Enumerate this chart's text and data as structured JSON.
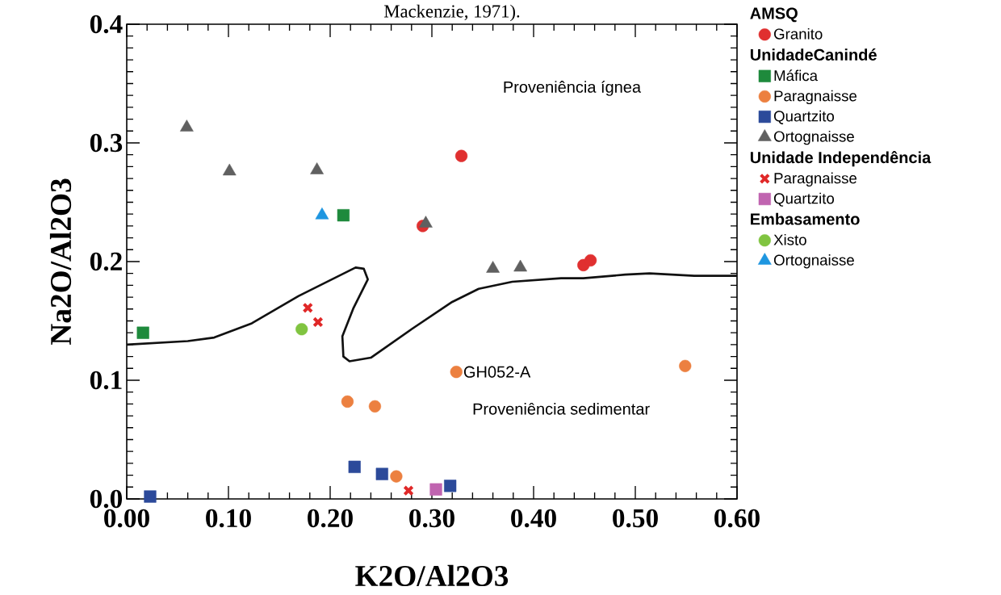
{
  "chart_data": {
    "type": "scatter",
    "title": "Mackenzie, 1971).",
    "xlabel": "K2O/Al2O3",
    "ylabel": "Na2O/Al2O3",
    "xlim": [
      0,
      0.6
    ],
    "ylim": [
      0,
      0.4
    ],
    "xticks": [
      {
        "value": 0,
        "label": "0.00"
      },
      {
        "value": 0.1,
        "label": "0.10"
      },
      {
        "value": 0.2,
        "label": "0.20"
      },
      {
        "value": 0.3,
        "label": "0.30"
      },
      {
        "value": 0.4,
        "label": "0.40"
      },
      {
        "value": 0.5,
        "label": "0.50"
      },
      {
        "value": 0.6,
        "label": "0.60"
      }
    ],
    "yticks": [
      {
        "value": 0,
        "label": "0.0"
      },
      {
        "value": 0.1,
        "label": "0.1"
      },
      {
        "value": 0.2,
        "label": "0.2"
      },
      {
        "value": 0.3,
        "label": "0.3"
      },
      {
        "value": 0.4,
        "label": "0.4"
      }
    ],
    "grid": false,
    "legend": "right",
    "annotations": [
      "AMSQ",
      "UnidadeCanindé",
      "Unidade Independência",
      "Embasamento",
      "Proveniência ígnea",
      "Proveniência sedimentar",
      {
        "text": "GH052-A",
        "x": 0.324,
        "y": 0.107
      }
    ],
    "series": [
      {
        "type": "line",
        "color": "#111111",
        "x": [
          0.0,
          0.06,
          0.086,
          0.123,
          0.169,
          0.225,
          0.233,
          0.237,
          0.223,
          0.212,
          0.213,
          0.219,
          0.24,
          0.28,
          0.32,
          0.346,
          0.379,
          0.427,
          0.449,
          0.49,
          0.514,
          0.558,
          0.6
        ],
        "values": [
          0.13,
          0.133,
          0.136,
          0.148,
          0.171,
          0.195,
          0.194,
          0.185,
          0.161,
          0.137,
          0.12,
          0.116,
          0.119,
          0.143,
          0.166,
          0.177,
          0.183,
          0.186,
          0.186,
          0.189,
          0.19,
          0.188,
          0.188
        ]
      },
      {
        "name": "Granito",
        "color": "#e03030",
        "marker": "circle",
        "x": [
          0.329,
          0.291,
          0.449,
          0.456
        ],
        "values": [
          0.289,
          0.23,
          0.197,
          0.201
        ]
      },
      {
        "name": "Máfica",
        "color": "#1e8a3c",
        "marker": "square",
        "x": [
          0.213,
          0.016
        ],
        "values": [
          0.239,
          0.14
        ]
      },
      {
        "name": "Paragnaisse",
        "color": "#ec8040",
        "marker": "circle",
        "x": [
          0.324,
          0.549,
          0.217,
          0.244,
          0.265
        ],
        "values": [
          0.107,
          0.112,
          0.082,
          0.078,
          0.019
        ]
      },
      {
        "name": "Quartzito",
        "color": "#2c4a9a",
        "marker": "square",
        "x": [
          0.224,
          0.251,
          0.318,
          0.023
        ],
        "values": [
          0.027,
          0.021,
          0.011,
          0.002
        ]
      },
      {
        "name": "Ortognaisse",
        "color": "#606060",
        "marker": "triangle",
        "x": [
          0.059,
          0.101,
          0.187,
          0.294,
          0.36,
          0.387
        ],
        "values": [
          0.313,
          0.276,
          0.277,
          0.232,
          0.194,
          0.195
        ]
      },
      {
        "name": "Paragnaisse",
        "color": "#e02828",
        "marker": "cross",
        "x": [
          0.178,
          0.188,
          0.277
        ],
        "values": [
          0.161,
          0.149,
          0.007
        ]
      },
      {
        "name": "Quartzito",
        "color": "#c064b0",
        "marker": "square",
        "x": [
          0.304
        ],
        "values": [
          0.008
        ]
      },
      {
        "name": "Xisto",
        "color": "#80c440",
        "marker": "circle",
        "x": [
          0.172
        ],
        "values": [
          0.143
        ]
      },
      {
        "name": "Ortognaisse",
        "color": "#1e96e0",
        "marker": "triangle",
        "x": [
          0.192
        ],
        "values": [
          0.239
        ]
      }
    ]
  }
}
